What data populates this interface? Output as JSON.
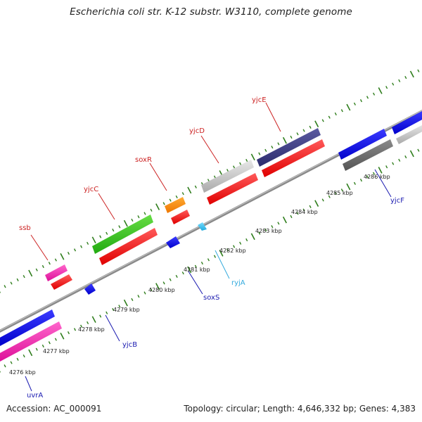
{
  "title": "Escherichia coli str. K-12 substr. W3110, complete genome",
  "accession_text": "Accession: AC_000091",
  "summary_text": "Topology: circular; Length: 4,646,332 bp; Genes: 4,383",
  "colors": {
    "backbone": "#8a8a8a",
    "ticks": "#2e7d1b",
    "gene_label_top": "#cc2222",
    "gene_label_bottom": "#1a1ab0",
    "gene_label_rna": "#33aadd"
  },
  "kbp_labels": [
    "4276 kbp",
    "4277 kbp",
    "4278 kbp",
    "4279 kbp",
    "4280 kbp",
    "4281 kbp",
    "4282 kbp",
    "4283 kbp",
    "4284 kbp",
    "4285 kbp",
    "4286 kbp"
  ],
  "genes_top": [
    {
      "name": "ssb",
      "color": "#cc2222"
    },
    {
      "name": "yjcC",
      "color": "#cc2222"
    },
    {
      "name": "soxR",
      "color": "#cc2222"
    },
    {
      "name": "yjcD",
      "color": "#cc2222"
    },
    {
      "name": "yjcE",
      "color": "#cc2222"
    }
  ],
  "genes_bottom": [
    {
      "name": "uvrA",
      "color": "#1a1ab0"
    },
    {
      "name": "yjcB",
      "color": "#1a1ab0"
    },
    {
      "name": "soxS",
      "color": "#1a1ab0"
    },
    {
      "name": "ryjA",
      "color": "#33aadd"
    },
    {
      "name": "yjcF",
      "color": "#1a1ab0"
    }
  ]
}
